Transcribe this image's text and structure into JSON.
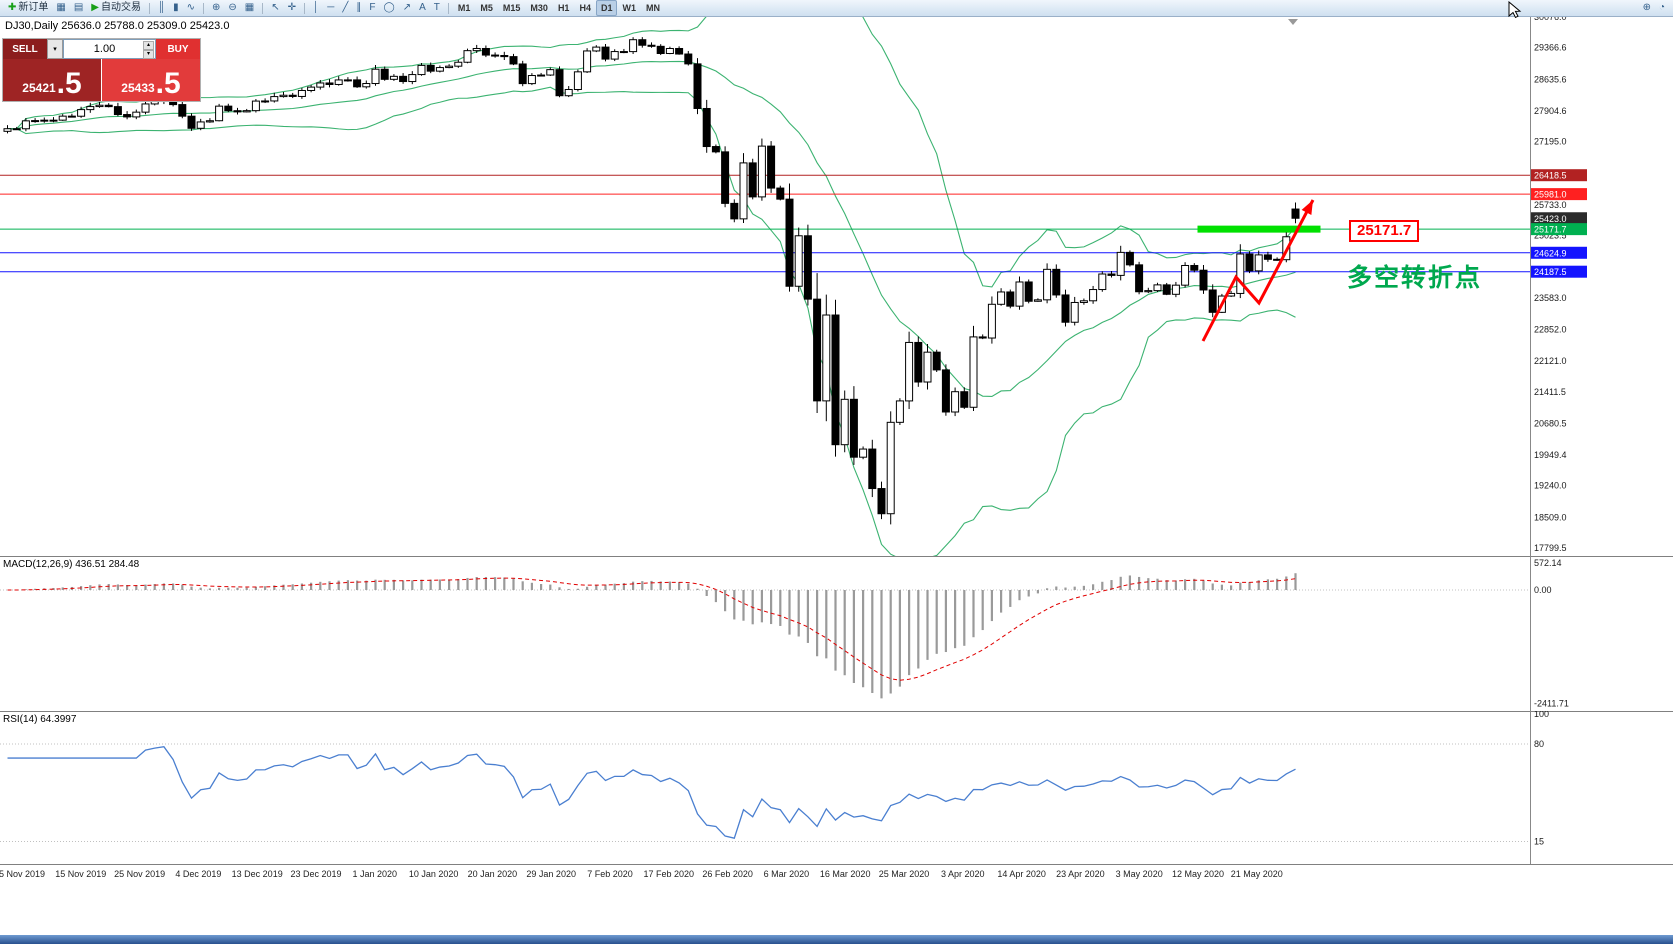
{
  "toolbar": {
    "left_items": [
      {
        "name": "new-order",
        "icon": "✚",
        "label": "新订单",
        "color": "#18a018"
      },
      {
        "name": "charts-grid",
        "icon": "▦",
        "label": ""
      },
      {
        "name": "profiles",
        "icon": "▤",
        "label": ""
      },
      {
        "name": "auto-trading",
        "icon": "▶",
        "label": "自动交易",
        "color": "#18a018"
      }
    ],
    "tool_items": [
      {
        "name": "bar-chart",
        "icon": "║"
      },
      {
        "name": "candle-chart",
        "icon": "▮"
      },
      {
        "name": "line-chart",
        "icon": "∿"
      },
      {
        "name": "zoom-in",
        "icon": "⊕"
      },
      {
        "name": "zoom-out",
        "icon": "⊖"
      },
      {
        "name": "grid",
        "icon": "▦"
      },
      {
        "name": "cursor",
        "icon": "↖"
      },
      {
        "name": "crosshair",
        "icon": "✛"
      },
      {
        "name": "vertical-line",
        "icon": "│"
      },
      {
        "name": "horizontal-line",
        "icon": "─"
      },
      {
        "name": "trendline",
        "icon": "╱"
      },
      {
        "name": "channel",
        "icon": "∥"
      },
      {
        "name": "fibonacci",
        "icon": "F"
      },
      {
        "name": "shapes",
        "icon": "◯"
      },
      {
        "name": "arrows",
        "icon": "↗"
      },
      {
        "name": "text",
        "icon": "A"
      },
      {
        "name": "text-label",
        "icon": "T"
      }
    ],
    "timeframes": [
      "M1",
      "M5",
      "M15",
      "M30",
      "H1",
      "H4",
      "D1",
      "W1",
      "MN"
    ],
    "active_timeframe": "D1",
    "right_icons": [
      {
        "name": "magnifier-plus",
        "icon": "⊕"
      },
      {
        "name": "indicator-dial",
        "icon": "◔"
      }
    ]
  },
  "window": {
    "chart_title": "DJ30,Daily",
    "ohlc_text": "25636.0 25788.0 25309.0 25423.0"
  },
  "trade_panel": {
    "sell_label": "SELL",
    "buy_label": "BUY",
    "volume": "1.00",
    "sell_price": "25421",
    "sell_price_frac": ".5",
    "buy_price": "25433",
    "buy_price_frac": ".5",
    "icons": {
      "dropdown": "▾",
      "up": "▴",
      "down": "▾"
    }
  },
  "price_axis": {
    "labels": [
      "30076.0",
      "29366.6",
      "28635.6",
      "27904.6",
      "27195.0",
      "25733.0",
      "25023.5",
      "23583.0",
      "22852.0",
      "22121.0",
      "21411.5",
      "20680.5",
      "19949.4",
      "19240.0",
      "18509.0",
      "17799.5"
    ],
    "badges": [
      {
        "text": "26418.5",
        "price": 26418.5,
        "bg": "#b22222"
      },
      {
        "text": "25981.0",
        "price": 25981.0,
        "bg": "#ff2020"
      },
      {
        "text": "25423.0",
        "price": 25423.0,
        "bg": "#2b2b2b"
      },
      {
        "text": "25171.7",
        "price": 25171.7,
        "bg": "#00b050"
      },
      {
        "text": "24624.9",
        "price": 24624.9,
        "bg": "#1414ff"
      },
      {
        "text": "24187.5",
        "price": 24187.5,
        "bg": "#1414ff"
      }
    ]
  },
  "main_chart": {
    "hlines": [
      {
        "price": 26418.5,
        "color": "#b22222"
      },
      {
        "price": 25981.0,
        "color": "#ff2020"
      },
      {
        "price": 25171.7,
        "color": "#00b050"
      },
      {
        "price": 24624.9,
        "color": "#1414ff"
      },
      {
        "price": 24187.5,
        "color": "#1414ff"
      }
    ],
    "highlight_bar": {
      "price": 25171.7,
      "color": "#00e100"
    },
    "callout": {
      "text": "25171.7",
      "color": "#ff0000"
    },
    "annotation": {
      "text": "多空转折点",
      "color": "#00a84e"
    },
    "trend_arrow": {
      "color": "#ff0000",
      "points": [
        [
          1203,
          341
        ],
        [
          1236,
          277
        ],
        [
          1259,
          303
        ],
        [
          1313,
          200
        ]
      ]
    },
    "bollinger_color": "#3cb371"
  },
  "macd": {
    "label": "MACD(12,26,9) 436.51 284.48",
    "params": {
      "fast": 12,
      "slow": 26,
      "signal": 9
    },
    "scale_labels": [
      {
        "text": "572.14",
        "value": 572.14
      },
      {
        "text": "0.00",
        "value": 0
      },
      {
        "text": "-2411.71",
        "value": -2411.71
      }
    ]
  },
  "rsi": {
    "label": "RSI(14) 64.3997",
    "period": 14,
    "scale_labels": [
      {
        "text": "100",
        "value": 100
      },
      {
        "text": "80",
        "value": 80
      },
      {
        "text": "15",
        "value": 15
      }
    ],
    "levels": [
      80,
      15
    ]
  },
  "time_axis": {
    "dates": [
      "5 Nov 2019",
      "15 Nov 2019",
      "25 Nov 2019",
      "4 Dec 2019",
      "13 Dec 2019",
      "23 Dec 2019",
      "1 Jan 2020",
      "10 Jan 2020",
      "20 Jan 2020",
      "29 Jan 2020",
      "7 Feb 2020",
      "17 Feb 2020",
      "26 Feb 2020",
      "6 Mar 2020",
      "16 Mar 2020",
      "25 Mar 2020",
      "3 Apr 2020",
      "14 Apr 2020",
      "23 Apr 2020",
      "3 May 2020",
      "12 May 2020",
      "21 May 2020"
    ]
  },
  "chart_data": {
    "type": "candlestick",
    "symbol": "DJ30",
    "timeframe": "Daily",
    "ylim": [
      17799.5,
      30076.0
    ],
    "closes": [
      27493,
      27492,
      27675,
      27681,
      27691,
      27691,
      27784,
      27782,
      27935,
      28005,
      28036,
      28004,
      27821,
      27766,
      27876,
      28066,
      28122,
      28164,
      28051,
      27783,
      27503,
      27650,
      27678,
      28015,
      27910,
      27882,
      27911,
      28132,
      28135,
      28236,
      28267,
      28239,
      28377,
      28455,
      28551,
      28516,
      28621,
      28622,
      28462,
      28538,
      28869,
      28635,
      28704,
      28584,
      28745,
      28957,
      28824,
      28907,
      28939,
      29030,
      29298,
      29348,
      29196,
      29186,
      29160,
      28990,
      28536,
      28723,
      28734,
      28859,
      28256,
      28400,
      28808,
      29291,
      29380,
      29103,
      29277,
      29276,
      29551,
      29423,
      29398,
      29232,
      29348,
      29220,
      28992,
      27961,
      27081,
      26958,
      25767,
      25409,
      26703,
      25917,
      27091,
      26121,
      25865,
      23851,
      25018,
      23553,
      21201,
      23186,
      20188,
      21237,
      19899,
      20087,
      19174,
      18592,
      20705,
      21200,
      22552,
      21637,
      22327,
      21917,
      20944,
      21413,
      21053,
      22680,
      22654,
      23434,
      23719,
      23391,
      23950,
      23504,
      23537,
      24242,
      23650,
      23019,
      23476,
      23515,
      23775,
      24134,
      24102,
      24634,
      24346,
      23724,
      23750,
      23883,
      23665,
      23876,
      24331,
      24222,
      23765,
      23248,
      23625,
      23685,
      24597,
      24207,
      24576,
      24474,
      24465,
      24995,
      25423
    ],
    "last_candle": {
      "open": 25636.0,
      "high": 25788.0,
      "low": 25309.0,
      "close": 25423.0
    },
    "indicators": [
      "Bollinger Bands",
      "MACD(12,26,9)",
      "RSI(14)"
    ]
  }
}
